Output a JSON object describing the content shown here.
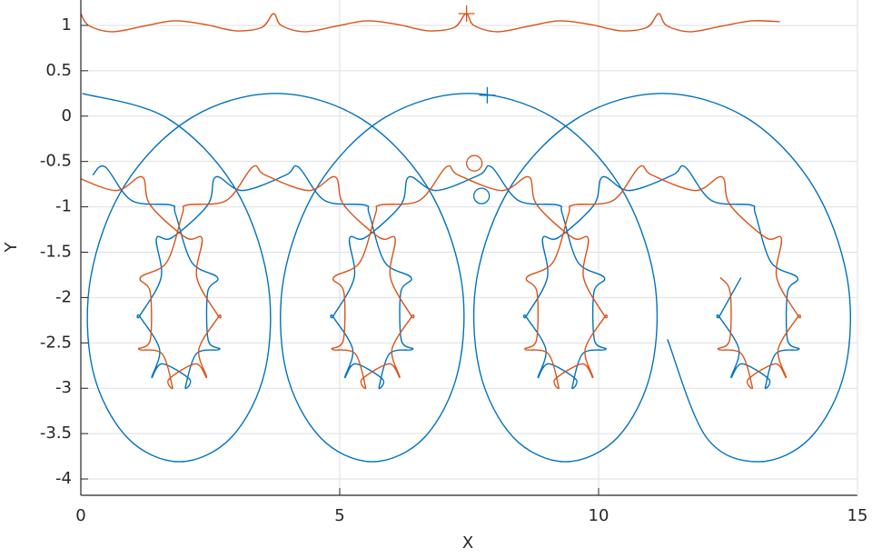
{
  "chart_data": {
    "type": "line",
    "xlabel": "X",
    "ylabel": "Y",
    "xlim": [
      0,
      15
    ],
    "ylim": [
      -4.18,
      1.28
    ],
    "xticks": [
      0,
      5,
      10,
      15
    ],
    "yticks": [
      -4,
      -3.5,
      -3,
      -2.5,
      -2,
      -1.5,
      -1,
      -0.5,
      0,
      0.5,
      1
    ],
    "grid": true,
    "series": [
      {
        "color": "#0072bd",
        "x": [
          0.03,
          1.66,
          2.94,
          3.6,
          3.56,
          2.91,
          1.9,
          0.89,
          0.23,
          0.19,
          0.85,
          2.13,
          3.76,
          5.39,
          6.67,
          7.34,
          7.29,
          6.64,
          5.63,
          4.62,
          3.96,
          3.92,
          4.59,
          5.86,
          7.49,
          9.13,
          10.4,
          11.07,
          11.02,
          10.37,
          9.36,
          8.35,
          7.7,
          7.65,
          8.32,
          9.6,
          11.23,
          12.86,
          14.13,
          14.8,
          14.76,
          14.1,
          13.09,
          12.08,
          11.33
        ],
        "values": [
          0.25,
          -0.02,
          -0.76,
          -1.78,
          -2.8,
          -3.54,
          -3.81,
          -3.54,
          -2.8,
          -1.78,
          -0.76,
          -0.02,
          0.25,
          -0.02,
          -0.76,
          -1.78,
          -2.8,
          -3.54,
          -3.81,
          -3.54,
          -2.8,
          -1.78,
          -0.76,
          -0.02,
          0.25,
          -0.02,
          -0.76,
          -1.78,
          -2.8,
          -3.54,
          -3.81,
          -3.54,
          -2.8,
          -1.78,
          -0.76,
          -0.02,
          0.25,
          -0.02,
          -0.76,
          -1.78,
          -2.8,
          -3.54,
          -3.81,
          -3.54,
          -2.46
        ]
      },
      {
        "color": "#d95319",
        "x": [
          0,
          0.15,
          0.6,
          1.2,
          1.8,
          2.4,
          3.0,
          3.5,
          3.72,
          3.87,
          4.32,
          4.92,
          5.52,
          6.12,
          6.72,
          7.22,
          7.44,
          7.59,
          8.04,
          8.64,
          9.24,
          9.84,
          10.44,
          10.94,
          11.16,
          11.31,
          11.76,
          12.36,
          12.96,
          13.5
        ],
        "values": [
          1.13,
          1.0,
          0.93,
          0.99,
          1.05,
          1.01,
          0.94,
          0.98,
          1.13,
          1.0,
          0.93,
          0.99,
          1.05,
          1.01,
          0.94,
          0.98,
          1.13,
          1.0,
          0.93,
          0.99,
          1.05,
          1.01,
          0.94,
          0.98,
          1.13,
          1.0,
          0.93,
          0.99,
          1.05,
          1.04
        ]
      },
      {
        "color": "#0072bd",
        "x": [
          0.23,
          0.47,
          0.98,
          1.74,
          1.83,
          2.14,
          2.64,
          2.45,
          2.46,
          2.68,
          2.23,
          2.02,
          2.1,
          1.57,
          1.37,
          1.52,
          1.14,
          1.14,
          1.55,
          1.46,
          1.76,
          2.45,
          2.61,
          3.12,
          3.96,
          4.2,
          4.71,
          5.48,
          5.57,
          5.87,
          6.38,
          6.18,
          6.19,
          6.41,
          5.96,
          5.76,
          5.83,
          5.3,
          5.1,
          5.25,
          4.87,
          4.88,
          5.28,
          5.19,
          5.49,
          6.18,
          6.34,
          6.86,
          7.69,
          7.93,
          8.45,
          9.21,
          9.3,
          9.6,
          10.11,
          9.91,
          9.92,
          10.14,
          9.69,
          9.49,
          9.56,
          9.03,
          8.83,
          8.98,
          8.6,
          8.61,
          9.01,
          8.92,
          9.22,
          9.91,
          10.08,
          10.59,
          11.43,
          11.67,
          12.18,
          12.94,
          13.03,
          13.33,
          13.84,
          13.65,
          13.65,
          13.87,
          13.42,
          13.22,
          13.29,
          12.77,
          12.56,
          12.71,
          12.33,
          12.34,
          12.75
        ],
        "values": [
          -0.65,
          -0.56,
          -0.93,
          -0.98,
          -1.08,
          -1.61,
          -1.78,
          -1.94,
          -2.47,
          -2.57,
          -2.62,
          -2.99,
          -2.9,
          -2.73,
          -2.88,
          -2.57,
          -2.21,
          -2.2,
          -1.78,
          -1.35,
          -1.34,
          -0.98,
          -0.67,
          -0.82,
          -0.65,
          -0.56,
          -0.93,
          -0.98,
          -1.08,
          -1.61,
          -1.78,
          -1.94,
          -2.47,
          -2.57,
          -2.62,
          -2.99,
          -2.9,
          -2.73,
          -2.88,
          -2.57,
          -2.21,
          -2.2,
          -1.78,
          -1.35,
          -1.34,
          -0.98,
          -0.67,
          -0.82,
          -0.65,
          -0.56,
          -0.93,
          -0.98,
          -1.08,
          -1.61,
          -1.78,
          -1.94,
          -2.47,
          -2.57,
          -2.62,
          -2.99,
          -2.9,
          -2.73,
          -2.88,
          -2.57,
          -2.21,
          -2.2,
          -1.78,
          -1.35,
          -1.34,
          -0.98,
          -0.67,
          -0.82,
          -0.65,
          -0.56,
          -0.93,
          -0.98,
          -1.08,
          -1.61,
          -1.78,
          -1.94,
          -2.47,
          -2.57,
          -2.62,
          -2.99,
          -2.9,
          -2.73,
          -2.88,
          -2.57,
          -2.21,
          -2.2,
          -1.78
        ]
      },
      {
        "color": "#d95319",
        "x": [
          -0.17,
          0.67,
          1.18,
          1.34,
          2.03,
          2.34,
          2.24,
          2.65,
          2.66,
          2.28,
          2.43,
          2.22,
          1.7,
          1.77,
          1.57,
          1.12,
          1.34,
          1.34,
          1.15,
          1.66,
          1.96,
          2.05,
          2.81,
          3.32,
          3.56,
          4.4,
          4.91,
          5.08,
          5.77,
          6.07,
          5.98,
          6.38,
          6.39,
          6.01,
          6.16,
          5.96,
          5.43,
          5.5,
          5.3,
          4.85,
          5.07,
          5.08,
          4.88,
          5.39,
          5.69,
          5.78,
          6.54,
          7.06,
          7.29,
          8.13,
          8.65,
          8.81,
          9.5,
          9.8,
          9.71,
          10.11,
          10.12,
          9.74,
          9.89,
          9.69,
          9.16,
          9.23,
          9.03,
          8.58,
          8.8,
          8.81,
          8.61,
          9.12,
          9.42,
          9.51,
          10.28,
          10.79,
          11.03,
          11.87,
          12.38,
          12.54,
          13.23,
          13.53,
          13.44,
          13.85,
          13.85,
          13.47,
          13.62,
          13.42,
          12.89,
          12.97,
          12.76,
          12.31,
          12.53,
          12.54,
          12.35
        ],
        "values": [
          -0.65,
          -0.82,
          -0.67,
          -0.98,
          -1.34,
          -1.35,
          -1.78,
          -2.2,
          -2.21,
          -2.57,
          -2.88,
          -2.73,
          -2.9,
          -2.99,
          -2.62,
          -2.57,
          -2.47,
          -1.94,
          -1.78,
          -1.61,
          -1.08,
          -0.98,
          -0.93,
          -0.56,
          -0.65,
          -0.82,
          -0.67,
          -0.98,
          -1.34,
          -1.35,
          -1.78,
          -2.2,
          -2.21,
          -2.57,
          -2.88,
          -2.73,
          -2.9,
          -2.99,
          -2.62,
          -2.57,
          -2.47,
          -1.94,
          -1.78,
          -1.61,
          -1.08,
          -0.98,
          -0.93,
          -0.56,
          -0.65,
          -0.82,
          -0.67,
          -0.98,
          -1.34,
          -1.35,
          -1.78,
          -2.2,
          -2.21,
          -2.57,
          -2.88,
          -2.73,
          -2.9,
          -2.99,
          -2.62,
          -2.57,
          -2.47,
          -1.94,
          -1.78,
          -1.61,
          -1.08,
          -0.98,
          -0.93,
          -0.56,
          -0.65,
          -0.82,
          -0.67,
          -0.98,
          -1.34,
          -1.35,
          -1.78,
          -2.2,
          -2.21,
          -2.57,
          -2.88,
          -2.73,
          -2.9,
          -2.99,
          -2.62,
          -2.57,
          -2.47,
          -1.94,
          -1.78
        ]
      },
      {
        "color": "#d95319",
        "marker": "+",
        "x": [
          7.45
        ],
        "values": [
          1.13
        ]
      },
      {
        "color": "#0072bd",
        "marker": "+",
        "x": [
          7.85
        ],
        "values": [
          0.23
        ]
      },
      {
        "color": "#d95319",
        "marker": "o",
        "x": [
          7.6
        ],
        "values": [
          -0.52
        ]
      },
      {
        "color": "#0072bd",
        "marker": "o",
        "x": [
          7.74
        ],
        "values": [
          -0.88
        ]
      }
    ]
  }
}
